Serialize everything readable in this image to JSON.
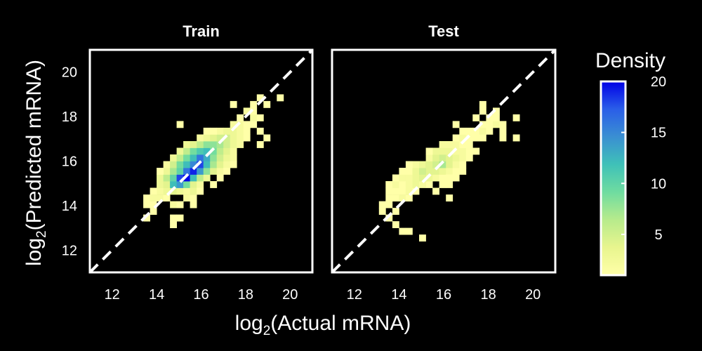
{
  "chart_data": {
    "type": "heatmap",
    "xlabel": {
      "pre": "log",
      "sub": "2",
      "post": "(Actual mRNA)"
    },
    "ylabel": {
      "pre": "log",
      "sub": "2",
      "post": "(Predicted mRNA)"
    },
    "xlim": [
      11,
      21
    ],
    "ylim": [
      11,
      21
    ],
    "xticks": [
      12,
      14,
      16,
      18,
      20
    ],
    "yticks": [
      12,
      14,
      16,
      18,
      20
    ],
    "reference_line": "y = x (dashed, white)",
    "bin_width": 0.3,
    "panels": [
      {
        "title": "Train",
        "bins": [
          [
            13.4,
            13.9,
            1
          ],
          [
            13.7,
            13.9,
            1
          ],
          [
            13.4,
            14.2,
            1
          ],
          [
            13.7,
            14.2,
            2
          ],
          [
            14.0,
            14.2,
            2
          ],
          [
            14.3,
            14.2,
            1
          ],
          [
            13.7,
            13.6,
            1
          ],
          [
            13.4,
            13.3,
            1
          ],
          [
            14.6,
            13.3,
            1
          ],
          [
            14.9,
            13.3,
            1
          ],
          [
            14.6,
            13.0,
            1
          ],
          [
            14.0,
            14.5,
            2
          ],
          [
            14.3,
            14.5,
            3
          ],
          [
            14.6,
            14.5,
            4
          ],
          [
            14.9,
            14.5,
            3
          ],
          [
            15.2,
            14.5,
            2
          ],
          [
            14.0,
            14.8,
            3
          ],
          [
            14.3,
            14.8,
            4
          ],
          [
            14.6,
            14.8,
            12
          ],
          [
            14.9,
            14.8,
            14
          ],
          [
            15.2,
            14.8,
            9
          ],
          [
            15.5,
            14.8,
            4
          ],
          [
            15.8,
            14.8,
            2
          ],
          [
            14.0,
            15.1,
            3
          ],
          [
            14.3,
            15.1,
            6
          ],
          [
            14.6,
            15.1,
            10
          ],
          [
            14.9,
            15.1,
            18
          ],
          [
            15.2,
            15.1,
            20
          ],
          [
            15.5,
            15.1,
            12
          ],
          [
            15.8,
            15.1,
            6
          ],
          [
            16.1,
            15.1,
            3
          ],
          [
            14.3,
            15.4,
            3
          ],
          [
            14.6,
            15.4,
            7
          ],
          [
            14.9,
            15.4,
            10
          ],
          [
            15.2,
            15.4,
            16
          ],
          [
            15.5,
            15.4,
            19
          ],
          [
            15.8,
            15.4,
            14
          ],
          [
            16.1,
            15.4,
            8
          ],
          [
            16.4,
            15.4,
            4
          ],
          [
            16.7,
            15.4,
            2
          ],
          [
            14.3,
            15.7,
            2
          ],
          [
            14.6,
            15.7,
            5
          ],
          [
            14.9,
            15.7,
            9
          ],
          [
            15.2,
            15.7,
            12
          ],
          [
            15.5,
            15.7,
            15
          ],
          [
            15.8,
            15.7,
            18
          ],
          [
            16.1,
            15.7,
            12
          ],
          [
            16.4,
            15.7,
            7
          ],
          [
            16.7,
            15.7,
            4
          ],
          [
            17.0,
            15.7,
            2
          ],
          [
            14.6,
            16.0,
            3
          ],
          [
            14.9,
            16.0,
            6
          ],
          [
            15.2,
            16.0,
            9
          ],
          [
            15.5,
            16.0,
            12
          ],
          [
            15.8,
            16.0,
            16
          ],
          [
            16.1,
            16.0,
            13
          ],
          [
            16.4,
            16.0,
            8
          ],
          [
            16.7,
            16.0,
            5
          ],
          [
            17.0,
            16.0,
            3
          ],
          [
            17.3,
            16.0,
            2
          ],
          [
            14.9,
            16.3,
            3
          ],
          [
            15.2,
            16.3,
            6
          ],
          [
            15.5,
            16.3,
            9
          ],
          [
            15.8,
            16.3,
            11
          ],
          [
            16.1,
            16.3,
            12
          ],
          [
            16.4,
            16.3,
            9
          ],
          [
            16.7,
            16.3,
            6
          ],
          [
            17.0,
            16.3,
            4
          ],
          [
            17.3,
            16.3,
            2
          ],
          [
            15.2,
            16.6,
            3
          ],
          [
            15.5,
            16.6,
            4
          ],
          [
            15.8,
            16.6,
            6
          ],
          [
            16.1,
            16.6,
            8
          ],
          [
            16.4,
            16.6,
            8
          ],
          [
            16.7,
            16.6,
            7
          ],
          [
            17.0,
            16.6,
            5
          ],
          [
            17.3,
            16.6,
            3
          ],
          [
            17.6,
            16.6,
            2
          ],
          [
            15.8,
            16.9,
            2
          ],
          [
            16.1,
            16.9,
            3
          ],
          [
            16.4,
            16.9,
            4
          ],
          [
            16.7,
            16.9,
            5
          ],
          [
            17.0,
            16.9,
            5
          ],
          [
            17.3,
            16.9,
            3
          ],
          [
            17.6,
            16.9,
            2
          ],
          [
            17.9,
            16.9,
            1
          ],
          [
            16.7,
            17.2,
            2
          ],
          [
            17.0,
            17.2,
            3
          ],
          [
            17.3,
            17.2,
            3
          ],
          [
            17.6,
            17.2,
            2
          ],
          [
            17.9,
            17.2,
            1
          ],
          [
            17.3,
            17.5,
            2
          ],
          [
            17.6,
            17.5,
            2
          ],
          [
            17.9,
            17.5,
            1
          ],
          [
            18.2,
            17.5,
            1
          ],
          [
            17.6,
            17.8,
            1
          ],
          [
            18.2,
            17.8,
            2
          ],
          [
            18.5,
            17.8,
            1
          ],
          [
            18.5,
            17.2,
            1
          ],
          [
            17.9,
            18.1,
            2
          ],
          [
            18.2,
            18.1,
            1
          ],
          [
            17.3,
            18.4,
            1
          ],
          [
            18.2,
            18.4,
            1
          ],
          [
            18.8,
            18.4,
            1
          ],
          [
            18.5,
            18.7,
            1
          ],
          [
            19.4,
            18.7,
            1
          ],
          [
            18.8,
            16.9,
            1
          ],
          [
            18.5,
            16.6,
            1
          ],
          [
            14.9,
            17.5,
            1
          ],
          [
            15.2,
            14.2,
            2
          ],
          [
            15.5,
            14.2,
            1
          ],
          [
            14.6,
            13.9,
            2
          ],
          [
            14.9,
            13.9,
            1
          ],
          [
            16.7,
            15.1,
            1
          ],
          [
            17.0,
            15.4,
            1
          ],
          [
            17.3,
            15.7,
            1
          ],
          [
            16.4,
            14.8,
            1
          ],
          [
            15.5,
            13.9,
            1
          ],
          [
            13.7,
            14.5,
            1
          ],
          [
            15.5,
            14.5,
            3
          ],
          [
            15.8,
            14.5,
            1
          ],
          [
            16.4,
            17.2,
            1
          ],
          [
            16.1,
            17.2,
            1
          ],
          [
            14.0,
            15.4,
            1
          ]
        ]
      },
      {
        "title": "Test",
        "bins": [
          [
            13.1,
            13.9,
            1
          ],
          [
            13.4,
            13.9,
            1
          ],
          [
            13.1,
            13.6,
            1
          ],
          [
            13.4,
            13.3,
            1
          ],
          [
            13.7,
            13.0,
            1
          ],
          [
            14.3,
            12.7,
            1
          ],
          [
            13.7,
            13.6,
            1
          ],
          [
            13.4,
            14.2,
            1
          ],
          [
            13.7,
            14.2,
            1
          ],
          [
            14.0,
            14.2,
            2
          ],
          [
            14.3,
            14.2,
            1
          ],
          [
            13.7,
            14.5,
            1
          ],
          [
            14.0,
            14.5,
            1
          ],
          [
            14.3,
            14.5,
            2
          ],
          [
            14.6,
            14.5,
            1
          ],
          [
            13.4,
            14.8,
            1
          ],
          [
            13.7,
            14.8,
            2
          ],
          [
            14.0,
            14.8,
            1
          ],
          [
            14.3,
            14.8,
            2
          ],
          [
            14.6,
            14.8,
            3
          ],
          [
            14.9,
            14.8,
            2
          ],
          [
            15.2,
            14.8,
            1
          ],
          [
            13.7,
            15.1,
            1
          ],
          [
            14.0,
            15.1,
            2
          ],
          [
            14.3,
            15.1,
            2
          ],
          [
            14.6,
            15.1,
            3
          ],
          [
            14.9,
            15.1,
            4
          ],
          [
            15.2,
            15.1,
            3
          ],
          [
            15.5,
            15.1,
            2
          ],
          [
            15.8,
            15.1,
            1
          ],
          [
            14.3,
            15.4,
            1
          ],
          [
            14.6,
            15.4,
            3
          ],
          [
            14.9,
            15.4,
            5
          ],
          [
            15.2,
            15.4,
            4
          ],
          [
            15.5,
            15.4,
            4
          ],
          [
            15.8,
            15.4,
            3
          ],
          [
            16.1,
            15.4,
            2
          ],
          [
            16.4,
            15.4,
            1
          ],
          [
            14.6,
            15.7,
            2
          ],
          [
            14.9,
            15.7,
            3
          ],
          [
            15.2,
            15.7,
            4
          ],
          [
            15.5,
            15.7,
            5
          ],
          [
            15.8,
            15.7,
            7
          ],
          [
            16.1,
            15.7,
            4
          ],
          [
            16.4,
            15.7,
            2
          ],
          [
            16.7,
            15.7,
            1
          ],
          [
            15.2,
            16.0,
            2
          ],
          [
            15.5,
            16.0,
            4
          ],
          [
            15.8,
            16.0,
            5
          ],
          [
            16.1,
            16.0,
            4
          ],
          [
            16.4,
            16.0,
            3
          ],
          [
            16.7,
            16.0,
            2
          ],
          [
            17.0,
            16.0,
            1
          ],
          [
            15.5,
            16.3,
            3
          ],
          [
            15.8,
            16.3,
            3
          ],
          [
            16.1,
            16.3,
            3
          ],
          [
            16.4,
            16.3,
            2
          ],
          [
            16.7,
            16.3,
            2
          ],
          [
            17.0,
            16.3,
            1
          ],
          [
            17.3,
            16.3,
            1
          ],
          [
            15.8,
            16.6,
            2
          ],
          [
            16.1,
            16.6,
            2
          ],
          [
            16.4,
            16.6,
            2
          ],
          [
            16.7,
            16.6,
            1
          ],
          [
            17.0,
            16.6,
            1
          ],
          [
            16.4,
            16.9,
            1
          ],
          [
            16.7,
            16.9,
            2
          ],
          [
            17.0,
            16.9,
            1
          ],
          [
            17.3,
            16.9,
            1
          ],
          [
            17.6,
            16.9,
            1
          ],
          [
            16.7,
            17.2,
            1
          ],
          [
            17.3,
            17.2,
            1
          ],
          [
            17.6,
            17.2,
            2
          ],
          [
            17.9,
            17.2,
            1
          ],
          [
            18.5,
            17.2,
            1
          ],
          [
            17.6,
            17.5,
            1
          ],
          [
            17.9,
            17.5,
            1
          ],
          [
            18.2,
            17.5,
            2
          ],
          [
            18.5,
            17.5,
            1
          ],
          [
            17.3,
            17.8,
            1
          ],
          [
            17.9,
            17.8,
            1
          ],
          [
            18.2,
            17.8,
            1
          ],
          [
            19.1,
            17.8,
            1
          ],
          [
            17.6,
            18.1,
            1
          ],
          [
            18.2,
            18.1,
            1
          ],
          [
            17.6,
            18.4,
            1
          ],
          [
            18.5,
            16.9,
            1
          ],
          [
            19.1,
            16.9,
            1
          ],
          [
            16.1,
            15.1,
            1
          ],
          [
            16.4,
            15.1,
            1
          ],
          [
            16.7,
            15.4,
            1
          ],
          [
            16.1,
            14.8,
            1
          ],
          [
            15.5,
            14.5,
            1
          ],
          [
            15.8,
            14.8,
            1
          ],
          [
            16.1,
            14.2,
            1
          ],
          [
            13.4,
            14.5,
            1
          ],
          [
            14.0,
            15.4,
            1
          ],
          [
            14.3,
            15.7,
            1
          ],
          [
            14.0,
            12.7,
            1
          ],
          [
            14.9,
            12.4,
            1
          ],
          [
            17.0,
            17.2,
            1
          ],
          [
            16.4,
            17.5,
            1
          ],
          [
            15.2,
            16.3,
            1
          ]
        ]
      }
    ],
    "colorbar": {
      "title": "Density",
      "ticks": [
        20,
        15,
        10,
        5
      ],
      "range": [
        1,
        20
      ],
      "colors": [
        "#ffffa8",
        "#e8f58e",
        "#b7eb8c",
        "#6fdca0",
        "#3fc1b8",
        "#3a8fd2",
        "#2a5ee8",
        "#0000e6"
      ]
    }
  }
}
